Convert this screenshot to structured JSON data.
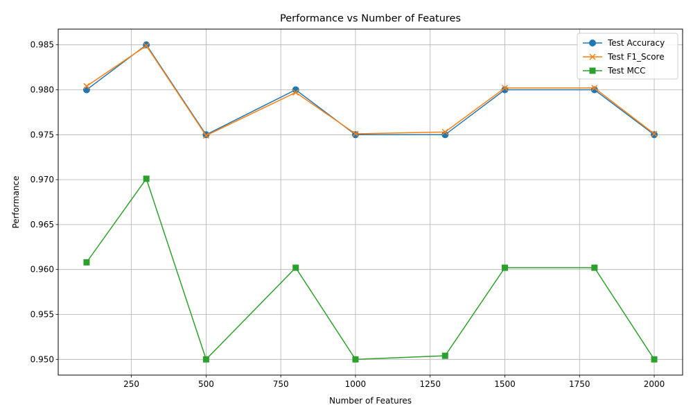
{
  "chart_data": {
    "type": "line",
    "title": "Performance vs Number of Features",
    "xlabel": "Number of Features",
    "ylabel": "Performance",
    "x": [
      100,
      300,
      500,
      800,
      1000,
      1300,
      1500,
      1800,
      2000
    ],
    "xlim": [
      5,
      2095
    ],
    "ylim": [
      0.94825,
      0.98675
    ],
    "xticks": [
      250,
      500,
      750,
      1000,
      1250,
      1500,
      1750,
      2000
    ],
    "xtick_labels": [
      "250",
      "500",
      "750",
      "1000",
      "1250",
      "1500",
      "1750",
      "2000"
    ],
    "yticks": [
      0.95,
      0.955,
      0.96,
      0.965,
      0.97,
      0.975,
      0.98,
      0.985
    ],
    "ytick_labels": [
      "0.950",
      "0.955",
      "0.960",
      "0.965",
      "0.970",
      "0.975",
      "0.980",
      "0.985"
    ],
    "grid": true,
    "legend_position": "top-right",
    "series": [
      {
        "name": "Test Accuracy",
        "color": "#1f77b4",
        "marker": "circle",
        "values": [
          0.98,
          0.985,
          0.975,
          0.98,
          0.975,
          0.975,
          0.98,
          0.98,
          0.975
        ]
      },
      {
        "name": "Test F1_Score",
        "color": "#ff7f0e",
        "marker": "x",
        "values": [
          0.9804,
          0.9849,
          0.9749,
          0.9797,
          0.9751,
          0.9753,
          0.9802,
          0.9802,
          0.9751
        ]
      },
      {
        "name": "Test MCC",
        "color": "#2ca02c",
        "marker": "square",
        "values": [
          0.9608,
          0.9701,
          0.95,
          0.9602,
          0.95,
          0.9504,
          0.9602,
          0.9602,
          0.95
        ]
      }
    ]
  }
}
